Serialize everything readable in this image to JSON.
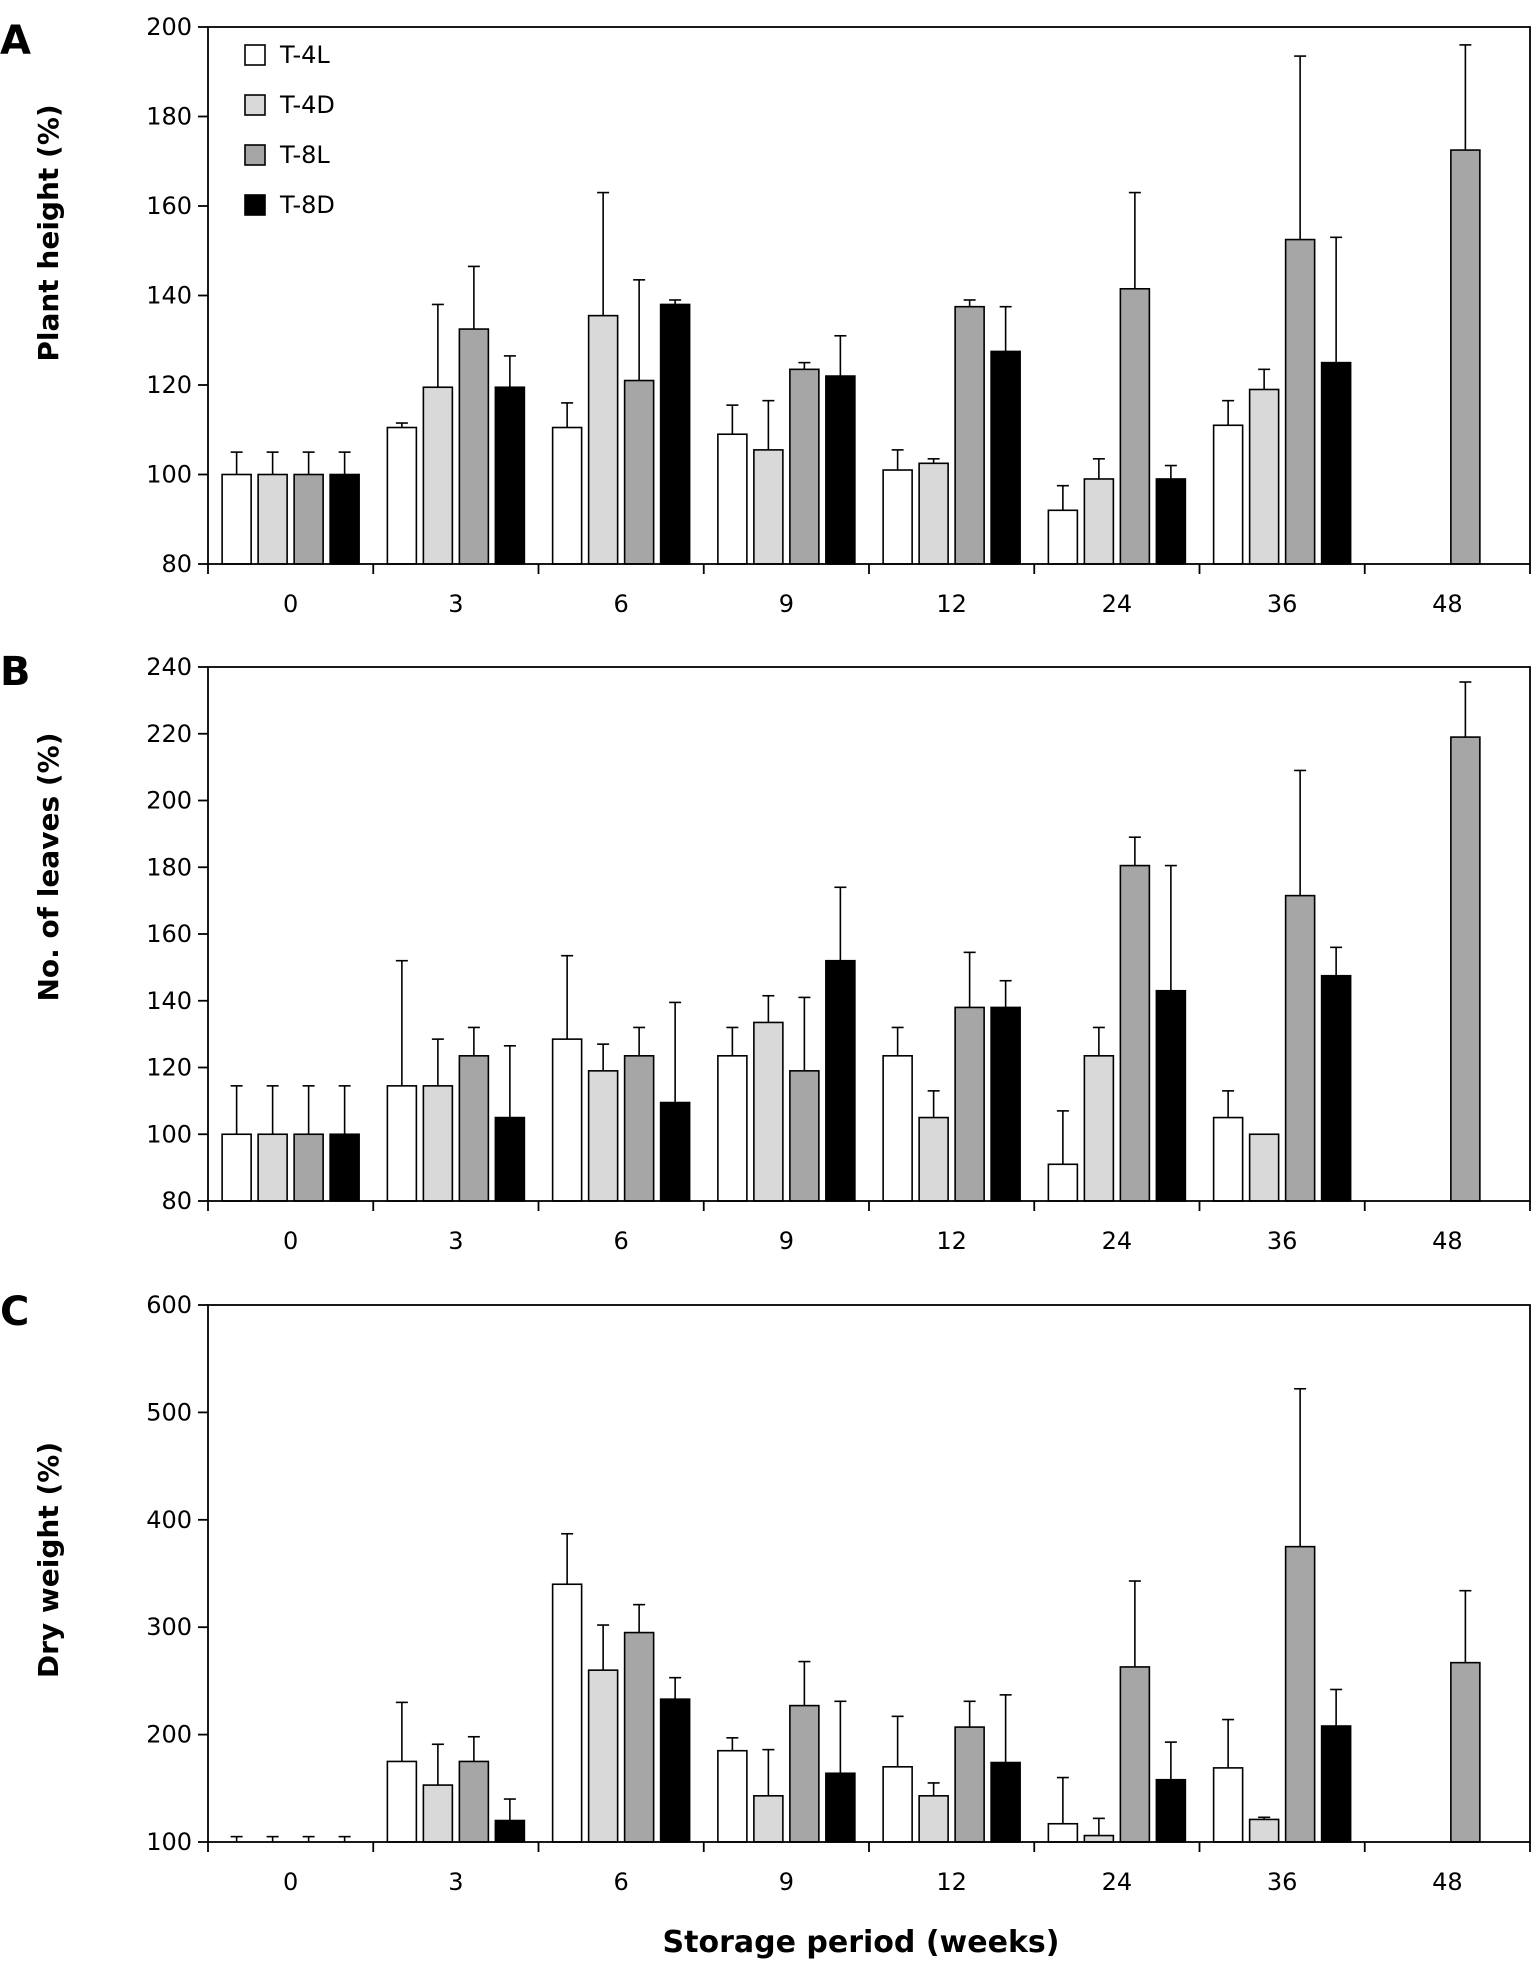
{
  "figure": {
    "xlabel": "Storage period (weeks)",
    "legend": [
      {
        "name": "T-4L",
        "color": "#ffffff"
      },
      {
        "name": "T-4D",
        "color": "#d9d9d9"
      },
      {
        "name": "T-8L",
        "color": "#a6a6a6"
      },
      {
        "name": "T-8D",
        "color": "#000000"
      }
    ]
  },
  "chart_data": [
    {
      "type": "bar",
      "panel": "A",
      "ylabel": "Plant height (%)",
      "ylim": [
        80,
        200
      ],
      "yticks": [
        80,
        100,
        120,
        140,
        160,
        180,
        200
      ],
      "categories": [
        "0",
        "3",
        "6",
        "9",
        "12",
        "24",
        "36",
        "48"
      ],
      "series": [
        {
          "name": "T-4L",
          "values": [
            100,
            110.5,
            110.5,
            109,
            101,
            92,
            111,
            null
          ],
          "errors": [
            5,
            1,
            5.5,
            6.5,
            4.5,
            5.5,
            5.5,
            null
          ]
        },
        {
          "name": "T-4D",
          "values": [
            100,
            119.5,
            135.5,
            105.5,
            102.5,
            99,
            119,
            null
          ],
          "errors": [
            5,
            18.5,
            27.5,
            11,
            1,
            4.5,
            4.5,
            null
          ]
        },
        {
          "name": "T-8L",
          "values": [
            100,
            132.5,
            121,
            123.5,
            137.5,
            141.5,
            152.5,
            172.5
          ],
          "errors": [
            5,
            14,
            22.5,
            1.5,
            1.5,
            21.5,
            41,
            23.5
          ]
        },
        {
          "name": "T-8D",
          "values": [
            100,
            119.5,
            138,
            122,
            127.5,
            99,
            125,
            null
          ],
          "errors": [
            5,
            7,
            1,
            9,
            10,
            3,
            28,
            null
          ]
        }
      ]
    },
    {
      "type": "bar",
      "panel": "B",
      "ylabel": "No. of leaves (%)",
      "ylim": [
        80,
        240
      ],
      "yticks": [
        80,
        100,
        120,
        140,
        160,
        180,
        200,
        220,
        240
      ],
      "categories": [
        "0",
        "3",
        "6",
        "9",
        "12",
        "24",
        "36",
        "48"
      ],
      "series": [
        {
          "name": "T-4L",
          "values": [
            100,
            114.5,
            128.5,
            123.5,
            123.5,
            91,
            105,
            null
          ],
          "errors": [
            14.5,
            37.5,
            25,
            8.5,
            8.5,
            16,
            8,
            null
          ]
        },
        {
          "name": "T-4D",
          "values": [
            100,
            114.5,
            119,
            133.5,
            105,
            123.5,
            100,
            null
          ],
          "errors": [
            14.5,
            14,
            8,
            8,
            8,
            8.5,
            0,
            null
          ]
        },
        {
          "name": "T-8L",
          "values": [
            100,
            123.5,
            123.5,
            119,
            138,
            180.5,
            171.5,
            219
          ],
          "errors": [
            14.5,
            8.5,
            8.5,
            22,
            16.5,
            8.5,
            37.5,
            16.5
          ]
        },
        {
          "name": "T-8D",
          "values": [
            100,
            105,
            109.5,
            152,
            138,
            143,
            147.5,
            null
          ],
          "errors": [
            14.5,
            21.5,
            30,
            22,
            8,
            37.5,
            8.5,
            null
          ]
        }
      ]
    },
    {
      "type": "bar",
      "panel": "C",
      "ylabel": "Dry weight (%)",
      "ylim": [
        100,
        600
      ],
      "yticks": [
        100,
        200,
        300,
        400,
        500,
        600
      ],
      "categories": [
        "0",
        "3",
        "6",
        "9",
        "12",
        "24",
        "36",
        "48"
      ],
      "series": [
        {
          "name": "T-4L",
          "values": [
            100,
            175,
            340,
            185,
            170,
            117,
            169,
            null
          ],
          "errors": [
            5,
            55,
            47,
            12,
            47,
            43,
            45,
            null
          ]
        },
        {
          "name": "T-4D",
          "values": [
            100,
            153,
            260,
            143,
            143,
            106,
            121,
            null
          ],
          "errors": [
            5,
            38,
            42,
            43,
            12,
            16,
            2,
            null
          ]
        },
        {
          "name": "T-8L",
          "values": [
            100,
            175,
            295,
            227,
            207,
            263,
            375,
            267
          ],
          "errors": [
            5,
            23,
            26,
            41,
            24,
            80,
            147,
            67
          ]
        },
        {
          "name": "T-8D",
          "values": [
            100,
            120,
            233,
            164,
            174,
            158,
            208,
            null
          ],
          "errors": [
            5,
            20,
            20,
            67,
            63,
            35,
            34,
            null
          ]
        }
      ]
    }
  ]
}
